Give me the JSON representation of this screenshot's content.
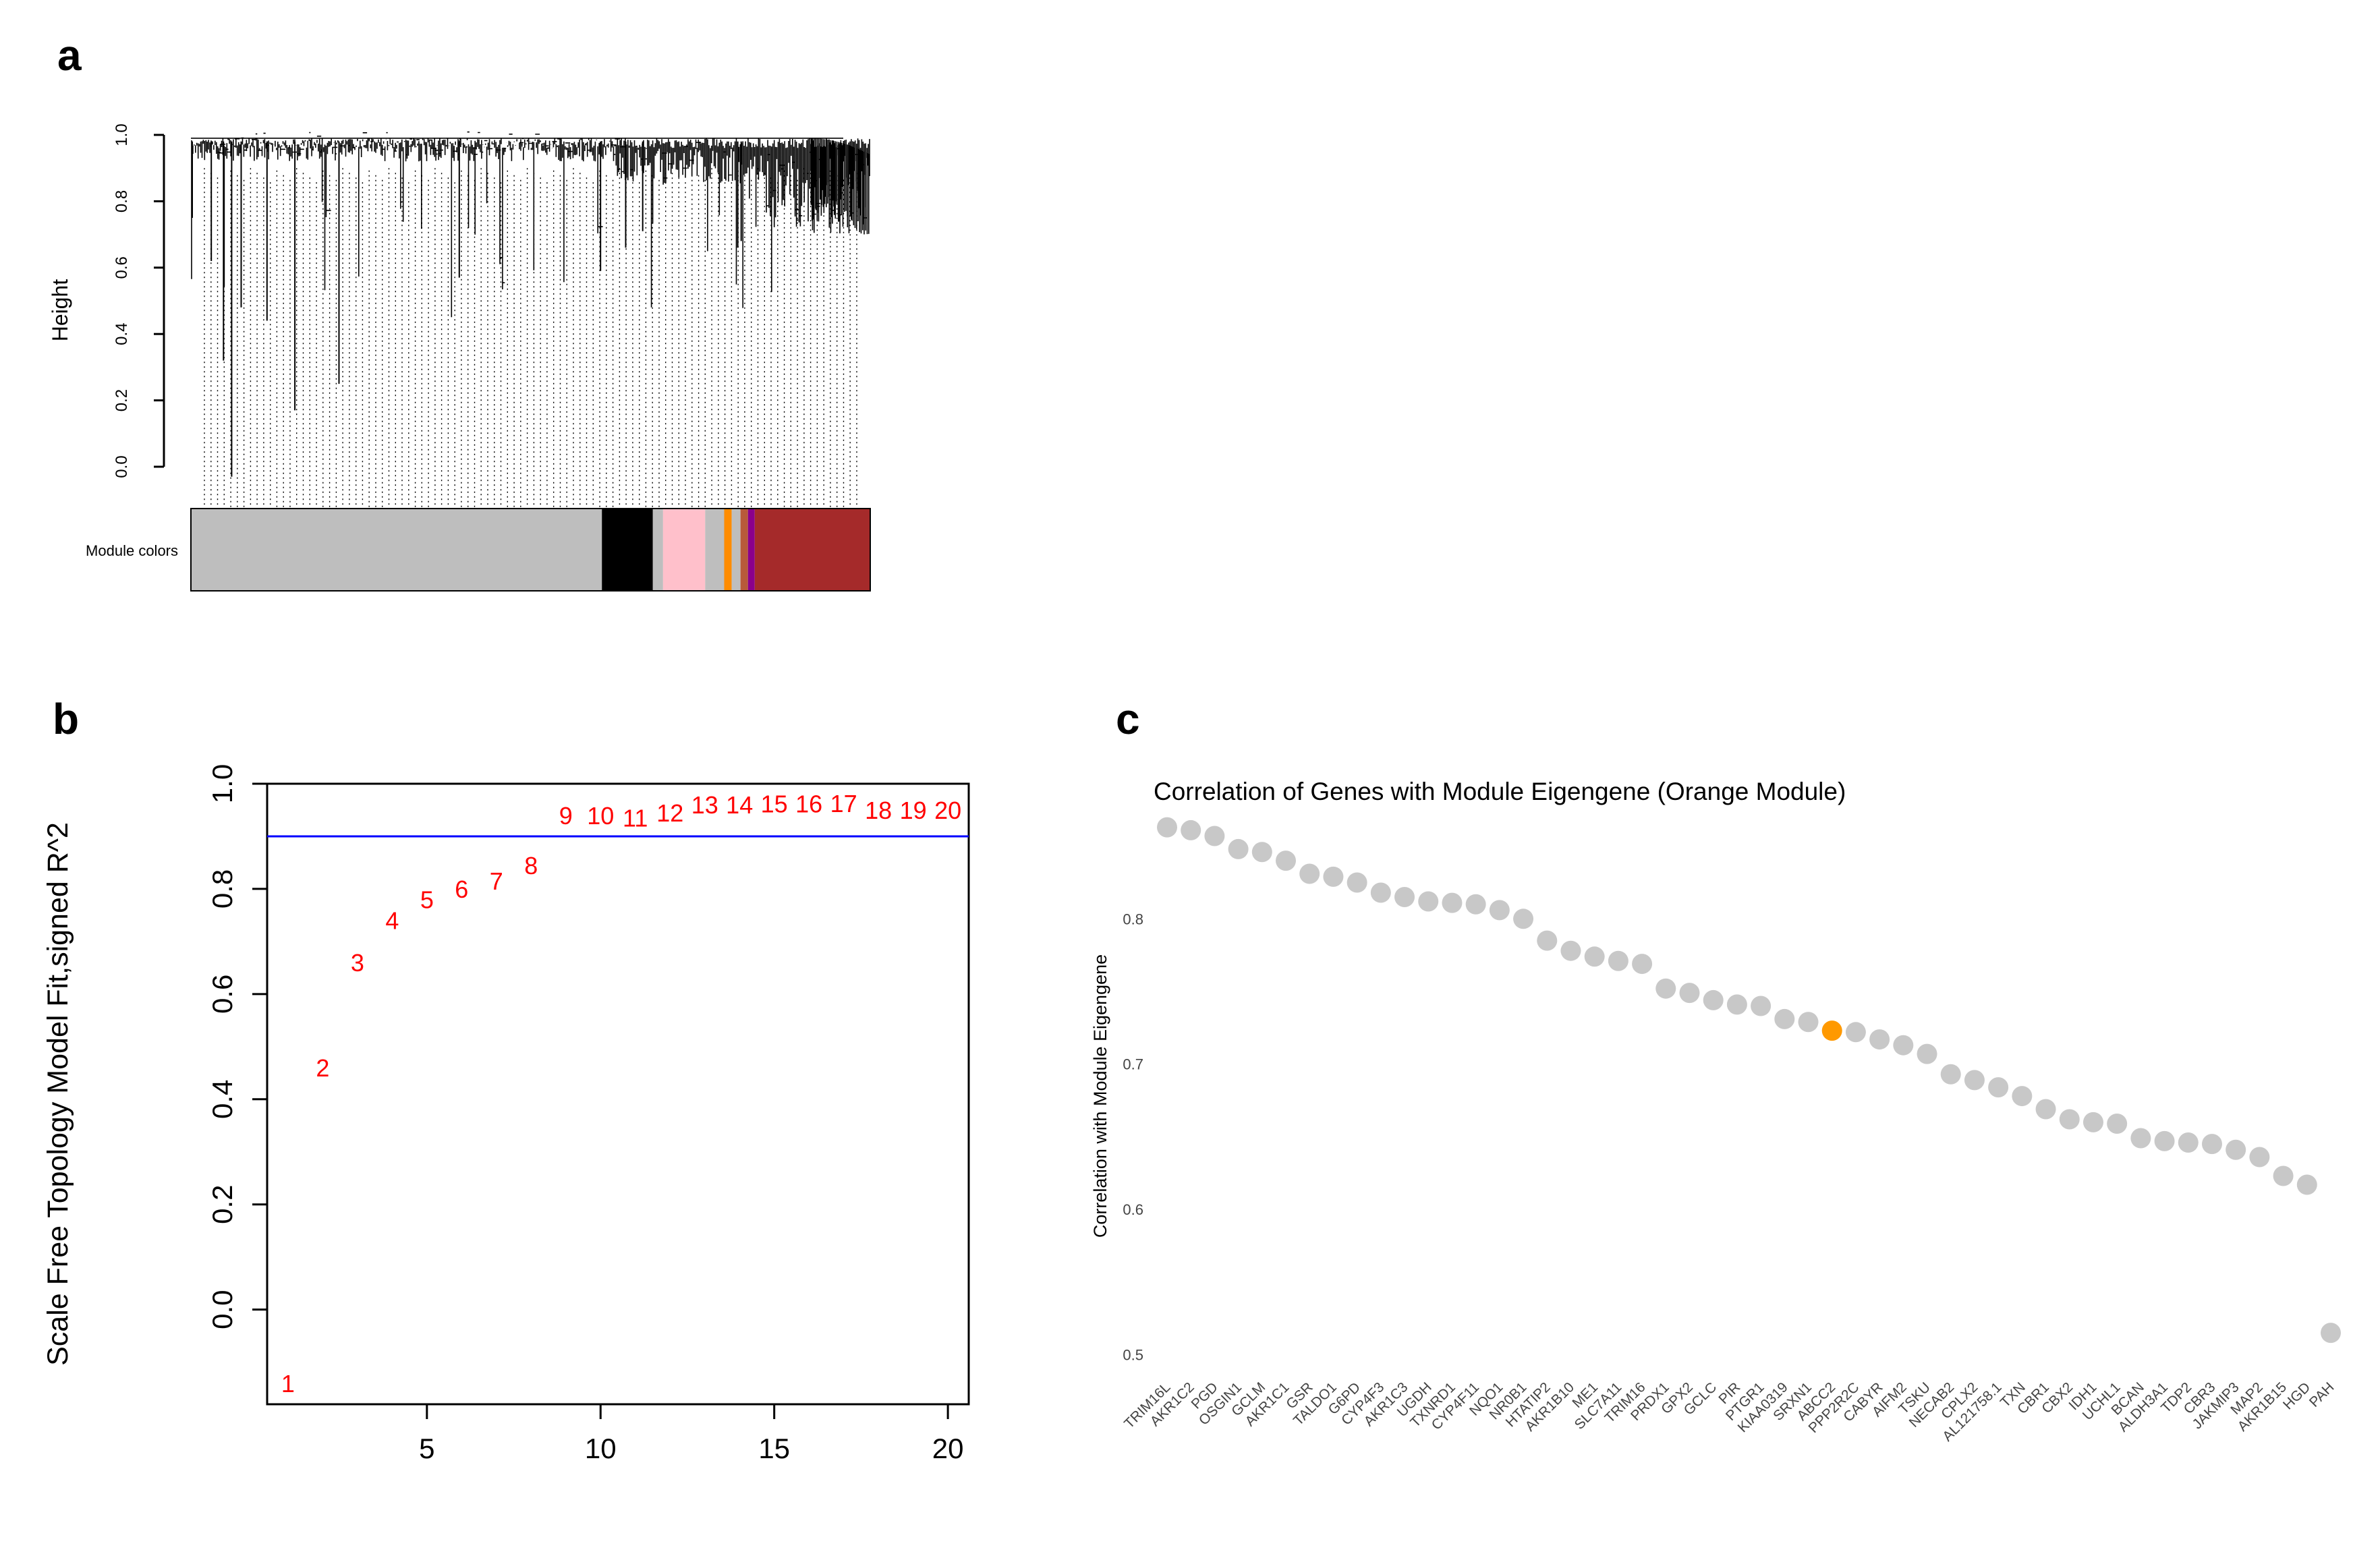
{
  "panels": {
    "a": "a",
    "b": "b",
    "c": "c"
  },
  "chart_data": [
    {
      "panel": "a",
      "type": "dendrogram",
      "ylabel": "Height",
      "yticks": [
        "0.0",
        "0.2",
        "0.4",
        "0.6",
        "0.8",
        "1.0"
      ],
      "ylim": [
        0,
        1.0
      ],
      "module_colors_label": "Module colors",
      "modules": [
        {
          "name": "grey",
          "color": "#bebebe",
          "start": 0.0,
          "end": 0.605
        },
        {
          "name": "black",
          "color": "#000000",
          "start": 0.605,
          "end": 0.68
        },
        {
          "name": "grey",
          "color": "#bebebe",
          "start": 0.68,
          "end": 0.695
        },
        {
          "name": "pink",
          "color": "#ffc0cb",
          "start": 0.695,
          "end": 0.757
        },
        {
          "name": "grey",
          "color": "#bebebe",
          "start": 0.757,
          "end": 0.785
        },
        {
          "name": "orange",
          "color": "#ff8c00",
          "start": 0.785,
          "end": 0.796
        },
        {
          "name": "grey",
          "color": "#bebebe",
          "start": 0.796,
          "end": 0.809
        },
        {
          "name": "darkorange",
          "color": "#b85a3a",
          "start": 0.809,
          "end": 0.82
        },
        {
          "name": "purple",
          "color": "#8b008b",
          "start": 0.82,
          "end": 0.83
        },
        {
          "name": "brown",
          "color": "#a52a2a",
          "start": 0.83,
          "end": 1.0
        }
      ]
    },
    {
      "panel": "b",
      "type": "scatter",
      "ylabel": "Scale Free Topology Model Fit,signed R^2",
      "xlabel": "",
      "xlim": [
        0.4,
        20.6
      ],
      "ylim": [
        -0.18,
        1.0
      ],
      "xticks": [
        "5",
        "10",
        "15",
        "20"
      ],
      "yticks": [
        "0.0",
        "0.2",
        "0.4",
        "0.6",
        "0.8",
        "1.0"
      ],
      "threshold": 0.9,
      "points": [
        {
          "label": "1",
          "x": 1,
          "y": -0.14
        },
        {
          "label": "2",
          "x": 2,
          "y": 0.46
        },
        {
          "label": "3",
          "x": 3,
          "y": 0.66
        },
        {
          "label": "4",
          "x": 4,
          "y": 0.74
        },
        {
          "label": "5",
          "x": 5,
          "y": 0.78
        },
        {
          "label": "6",
          "x": 6,
          "y": 0.8
        },
        {
          "label": "7",
          "x": 7,
          "y": 0.815
        },
        {
          "label": "8",
          "x": 8,
          "y": 0.845
        },
        {
          "label": "9",
          "x": 9,
          "y": 0.94
        },
        {
          "label": "10",
          "x": 10,
          "y": 0.94
        },
        {
          "label": "11",
          "x": 11,
          "y": 0.935
        },
        {
          "label": "12",
          "x": 12,
          "y": 0.945
        },
        {
          "label": "13",
          "x": 13,
          "y": 0.96
        },
        {
          "label": "14",
          "x": 14,
          "y": 0.96
        },
        {
          "label": "15",
          "x": 15,
          "y": 0.962
        },
        {
          "label": "16",
          "x": 16,
          "y": 0.962
        },
        {
          "label": "17",
          "x": 17,
          "y": 0.963
        },
        {
          "label": "18",
          "x": 18,
          "y": 0.95
        },
        {
          "label": "19",
          "x": 19,
          "y": 0.95
        },
        {
          "label": "20",
          "x": 20,
          "y": 0.95
        }
      ]
    },
    {
      "panel": "c",
      "type": "scatter",
      "title": "Correlation of Genes with Module Eigengene (Orange Module)",
      "ylabel": "Correlation with Module Eigengene",
      "xlabel": "",
      "ylim": [
        0.49,
        0.88
      ],
      "yticks": [
        "0.5",
        "0.6",
        "0.7",
        "0.8"
      ],
      "highlight_color": "#ff9900",
      "point_color": "#c8c8c8",
      "genes": [
        "TRIM16L",
        "AKR1C2",
        "PGD",
        "OSGIN1",
        "GCLM",
        "AKR1C1",
        "GSR",
        "TALDO1",
        "G6PD",
        "CYP4F3",
        "AKR1C3",
        "UGDH",
        "TXNRD1",
        "CYP4F11",
        "NQO1",
        "NR0B1",
        "HTATIP2",
        "AKR1B10",
        "ME1",
        "SLC7A11",
        "TRIM16",
        "PRDX1",
        "GPX2",
        "GCLC",
        "PIR",
        "PTGR1",
        "KIAA0319",
        "SRXN1",
        "ABCC2",
        "PPP2R2C",
        "CABYR",
        "AIFM2",
        "TSKU",
        "NECAB2",
        "CPLX2",
        "AL121758.1",
        "TXN",
        "CBR1",
        "CBX2",
        "IDH1",
        "UCHL1",
        "BCAN",
        "ALDH3A1",
        "TDP2",
        "CBR3",
        "JAKMIP3",
        "MAP2",
        "AKR1B15",
        "HGD",
        "PAH"
      ],
      "values": [
        0.863,
        0.861,
        0.857,
        0.848,
        0.846,
        0.84,
        0.831,
        0.829,
        0.825,
        0.818,
        0.815,
        0.812,
        0.811,
        0.81,
        0.806,
        0.8,
        0.785,
        0.778,
        0.774,
        0.771,
        0.769,
        0.752,
        0.749,
        0.744,
        0.741,
        0.74,
        0.731,
        0.729,
        0.723,
        0.722,
        0.717,
        0.713,
        0.707,
        0.693,
        0.689,
        0.684,
        0.678,
        0.669,
        0.662,
        0.66,
        0.659,
        0.649,
        0.647,
        0.646,
        0.645,
        0.641,
        0.636,
        0.623,
        0.617,
        0.515
      ],
      "highlight_gene": "ABCC2"
    }
  ]
}
